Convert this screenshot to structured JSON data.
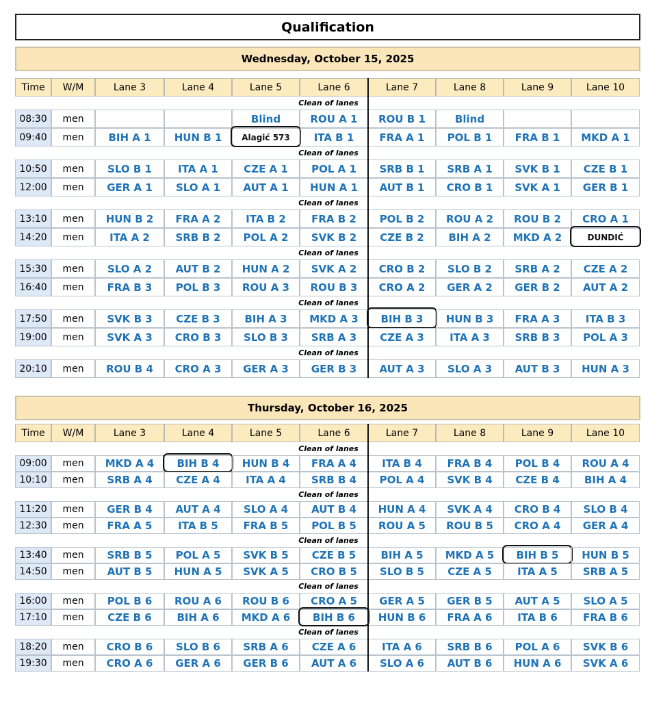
{
  "title": "Qualification",
  "days": [
    {
      "title": "Wednesday, October 15, 2025",
      "columns": [
        "Time",
        "W/M",
        "Lane 3",
        "Lane 4",
        "Lane 5",
        "Lane 6",
        "Lane 7",
        "Lane 8",
        "Lane 9",
        "Lane 10"
      ],
      "groups": [
        {
          "note": "Clean of lanes",
          "rows": [
            [
              "08:30",
              "men",
              null,
              null,
              "Blind",
              "ROU A 1",
              "ROU B 1",
              "Blind",
              null,
              null
            ],
            [
              "09:40",
              "men",
              "BIH A 1",
              "HUN B 1",
              "Alagić 573",
              "ITA B 1",
              "FRA A 1",
              "POL B 1",
              "FRA B 1",
              "MKD A 1"
            ]
          ]
        },
        {
          "note": "Clean of lanes",
          "rows": [
            [
              "10:50",
              "men",
              "SLO B 1",
              "ITA A 1",
              "CZE A 1",
              "POL A 1",
              "SRB B 1",
              "SRB A 1",
              "SVK B 1",
              "CZE B 1"
            ],
            [
              "12:00",
              "men",
              "GER A 1",
              "SLO A 1",
              "AUT A 1",
              "HUN A 1",
              "AUT B 1",
              "CRO B 1",
              "SVK A 1",
              "GER B 1"
            ]
          ]
        },
        {
          "note": "Clean of lanes",
          "rows": [
            [
              "13:10",
              "men",
              "HUN B 2",
              "FRA A 2",
              "ITA B 2",
              "FRA B 2",
              "POL B 2",
              "ROU A 2",
              "ROU B 2",
              "CRO A 1"
            ],
            [
              "14:20",
              "men",
              "ITA A 2",
              "SRB B 2",
              "POL A 2",
              "SVK B 2",
              "CZE B 2",
              "BIH A 2",
              "MKD A 2",
              "DUNDIĆ"
            ]
          ]
        },
        {
          "note": "Clean of lanes",
          "rows": [
            [
              "15:30",
              "men",
              "SLO A 2",
              "AUT B 2",
              "HUN A 2",
              "SVK A 2",
              "CRO B 2",
              "SLO B 2",
              "SRB A 2",
              "CZE A 2"
            ],
            [
              "16:40",
              "men",
              "FRA B 3",
              "POL B 3",
              "ROU A 3",
              "ROU B 3",
              "CRO A 2",
              "GER A 2",
              "GER B 2",
              "AUT A 2"
            ]
          ]
        },
        {
          "note": "Clean of lanes",
          "rows": [
            [
              "17:50",
              "men",
              "SVK B 3",
              "CZE B 3",
              "BIH A 3",
              "MKD A 3",
              "BIH B 3",
              "HUN B 3",
              "FRA A 3",
              "ITA B 3"
            ],
            [
              "19:00",
              "men",
              "SVK A 3",
              "CRO B 3",
              "SLO B 3",
              "SRB A 3",
              "CZE A 3",
              "ITA A 3",
              "SRB B 3",
              "POL A 3"
            ]
          ]
        },
        {
          "note": "Clean of lanes",
          "rows": [
            [
              "20:10",
              "men",
              "ROU B 4",
              "CRO A 3",
              "GER A 3",
              "GER B 3",
              "AUT A 3",
              "SLO A 3",
              "AUT B 3",
              "HUN A 3"
            ]
          ]
        }
      ]
    },
    {
      "title": "Thursday, October 16, 2025",
      "columns": [
        "Time",
        "W/M",
        "Lane 3",
        "Lane 4",
        "Lane 5",
        "Lane 6",
        "Lane 7",
        "Lane 8",
        "Lane 9",
        "Lane 10"
      ],
      "groups": [
        {
          "note": "Clean of lanes",
          "rows": [
            [
              "09:00",
              "men",
              "MKD A 4",
              "BIH B 4",
              "HUN B 4",
              "FRA A 4",
              "ITA B 4",
              "FRA B 4",
              "POL B 4",
              "ROU A 4"
            ],
            [
              "10:10",
              "men",
              "SRB A 4",
              "CZE A 4",
              "ITA A 4",
              "SRB B 4",
              "POL A 4",
              "SVK B 4",
              "CZE B 4",
              "BIH A 4"
            ]
          ]
        },
        {
          "note": "Clean of lanes",
          "rows": [
            [
              "11:20",
              "men",
              "GER B 4",
              "AUT A 4",
              "SLO A 4",
              "AUT B 4",
              "HUN A 4",
              "SVK A 4",
              "CRO B 4",
              "SLO B 4"
            ],
            [
              "12:30",
              "men",
              "FRA A 5",
              "ITA B 5",
              "FRA B 5",
              "POL B 5",
              "ROU A 5",
              "ROU B 5",
              "CRO A 4",
              "GER A 4"
            ]
          ]
        },
        {
          "note": "Clean of lanes",
          "rows": [
            [
              "13:40",
              "men",
              "SRB B 5",
              "POL A 5",
              "SVK B 5",
              "CZE B 5",
              "BIH A 5",
              "MKD A 5",
              "BIH B 5",
              "HUN B 5"
            ],
            [
              "14:50",
              "men",
              "AUT B 5",
              "HUN A 5",
              "SVK A 5",
              "CRO B 5",
              "SLO B 5",
              "CZE A 5",
              "ITA A 5",
              "SRB A 5"
            ]
          ]
        },
        {
          "note": "Clean of lanes",
          "rows": [
            [
              "16:00",
              "men",
              "POL B 6",
              "ROU A 6",
              "ROU B 6",
              "CRO A 5",
              "GER A 5",
              "GER B 5",
              "AUT A 5",
              "SLO A 5"
            ],
            [
              "17:10",
              "men",
              "CZE B 6",
              "BIH A 6",
              "MKD A 6",
              "BIH B 6",
              "HUN B 6",
              "FRA A 6",
              "ITA B 6",
              "FRA B 6"
            ]
          ]
        },
        {
          "note": "Clean of lanes",
          "rows": [
            [
              "18:20",
              "men",
              "CRO B 6",
              "SLO B 6",
              "SRB A 6",
              "CZE A 6",
              "ITA A 6",
              "SRB B 6",
              "POL A 6",
              "SVK B 6"
            ],
            [
              "19:30",
              "men",
              "CRO A 6",
              "GER A 6",
              "GER B 6",
              "AUT A 6",
              "SLO A 6",
              "AUT B 6",
              "HUN A 6",
              "SVK A 6"
            ]
          ]
        }
      ]
    }
  ]
}
